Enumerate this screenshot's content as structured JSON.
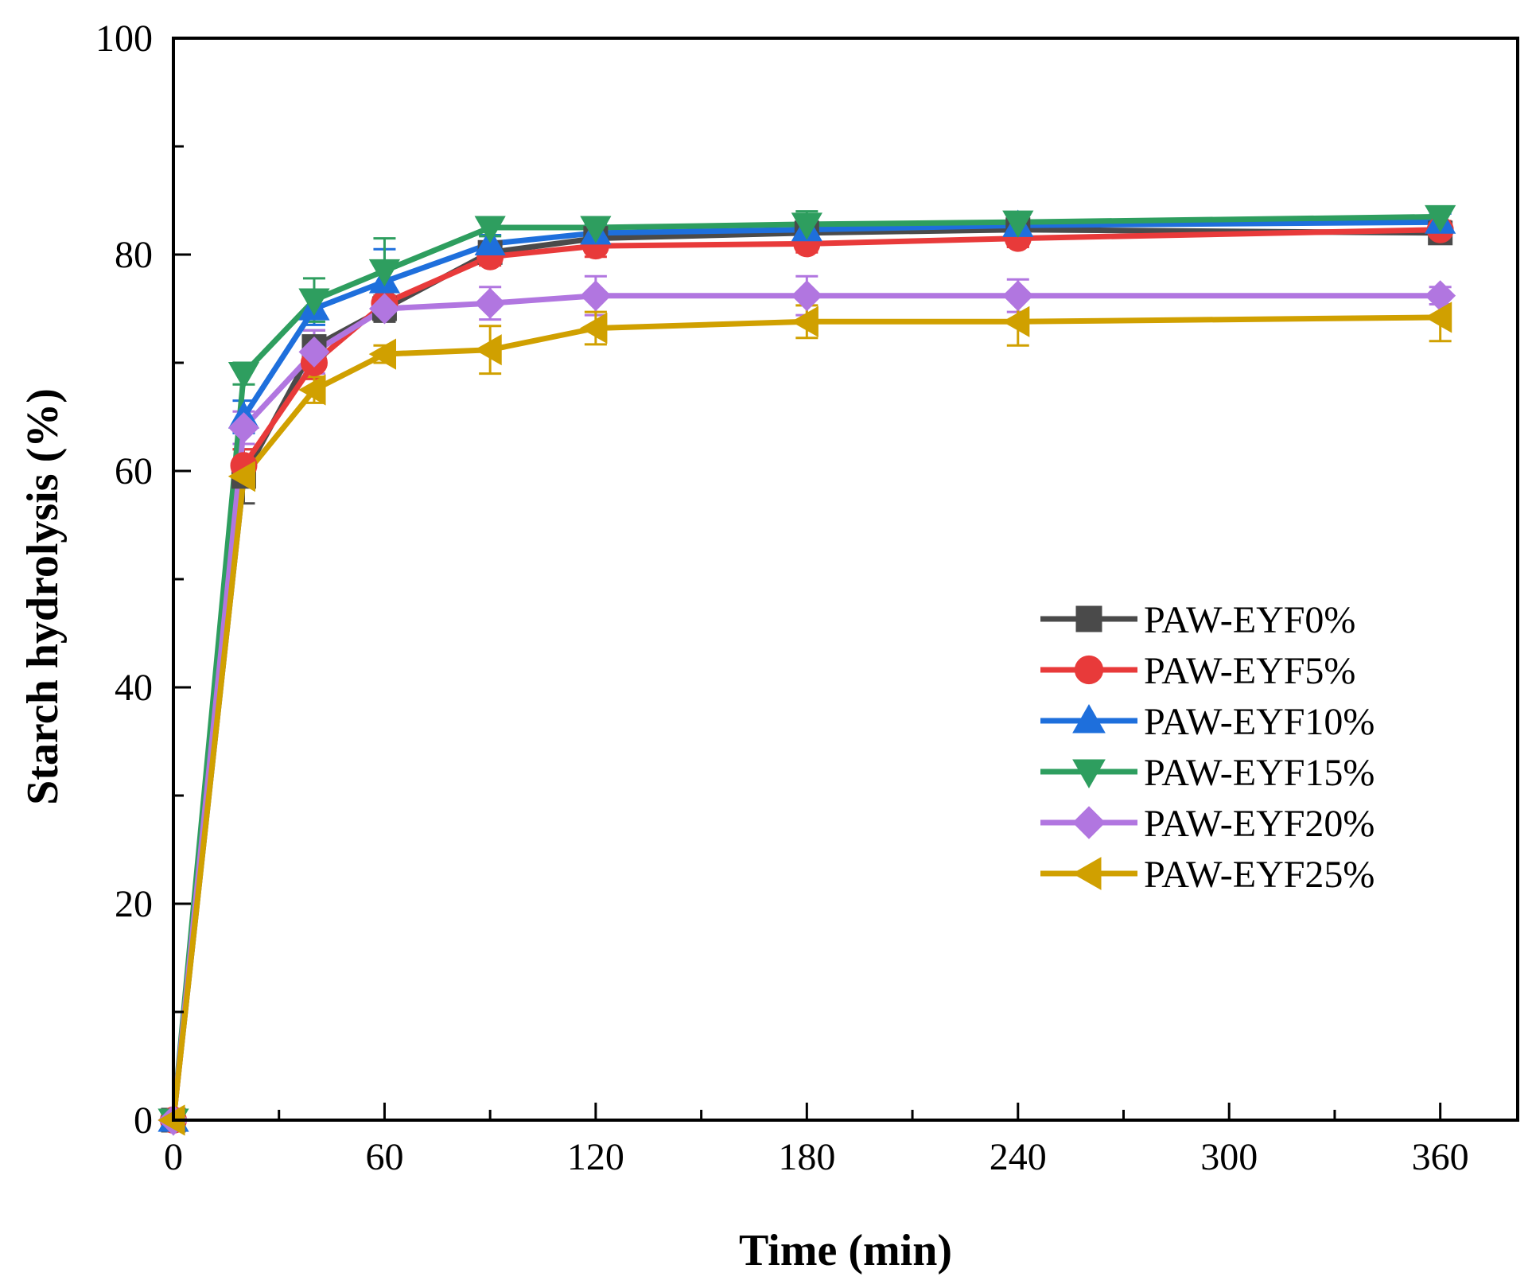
{
  "chart_data": {
    "type": "line",
    "title": "",
    "xlabel": "Time (min)",
    "ylabel": "Starch hydrolysis (%)",
    "xlim": [
      0,
      382
    ],
    "ylim": [
      0,
      100
    ],
    "xticks": [
      0,
      60,
      120,
      180,
      240,
      300,
      360
    ],
    "yticks": [
      0,
      20,
      40,
      60,
      80,
      100
    ],
    "x_minor_step": 30,
    "y_minor_step": 10,
    "grid": false,
    "legend_position": "center-right",
    "x": [
      0,
      20,
      40,
      60,
      90,
      120,
      180,
      240,
      360
    ],
    "series": [
      {
        "name": "PAW-EYF0%",
        "color": "#4a4a4a",
        "marker": "square",
        "values": [
          0,
          59.5,
          71.5,
          75.0,
          80.2,
          81.5,
          82.0,
          82.3,
          82.0
        ],
        "errors": [
          0,
          2.5,
          1.5,
          1.2,
          1.0,
          1.2,
          1.5,
          1.5,
          0.8
        ]
      },
      {
        "name": "PAW-EYF5%",
        "color": "#e83a3a",
        "marker": "circle",
        "values": [
          0,
          60.5,
          70.0,
          75.5,
          79.8,
          80.8,
          81.0,
          81.5,
          82.3
        ],
        "errors": [
          0,
          1.5,
          1.5,
          1.2,
          0.8,
          1.0,
          0.8,
          0.8,
          0.8
        ]
      },
      {
        "name": "PAW-EYF10%",
        "color": "#1e6fdc",
        "marker": "triangle-up",
        "values": [
          0,
          65.0,
          75.0,
          77.5,
          81.0,
          82.0,
          82.3,
          82.7,
          83.0
        ],
        "errors": [
          0,
          1.5,
          1.5,
          3.0,
          0.8,
          0.8,
          0.8,
          0.8,
          0.8
        ]
      },
      {
        "name": "PAW-EYF15%",
        "color": "#2e9e5f",
        "marker": "triangle-down",
        "values": [
          0,
          69.0,
          75.8,
          78.5,
          82.5,
          82.5,
          82.8,
          83.0,
          83.5
        ],
        "errors": [
          0,
          1.0,
          2.0,
          3.0,
          0.8,
          0.8,
          1.2,
          0.8,
          0.8
        ]
      },
      {
        "name": "PAW-EYF20%",
        "color": "#b176e0",
        "marker": "diamond",
        "values": [
          0,
          64.0,
          71.0,
          75.0,
          75.5,
          76.2,
          76.2,
          76.2,
          76.2
        ],
        "errors": [
          0,
          1.5,
          2.0,
          1.0,
          1.5,
          1.8,
          1.8,
          1.5,
          0.8
        ]
      },
      {
        "name": "PAW-EYF25%",
        "color": "#d0a000",
        "marker": "triangle-left",
        "values": [
          0,
          59.5,
          67.5,
          70.8,
          71.2,
          73.2,
          73.8,
          73.8,
          74.2
        ],
        "errors": [
          0,
          1.0,
          1.2,
          0.8,
          2.2,
          1.5,
          1.5,
          2.2,
          2.2
        ]
      }
    ]
  }
}
